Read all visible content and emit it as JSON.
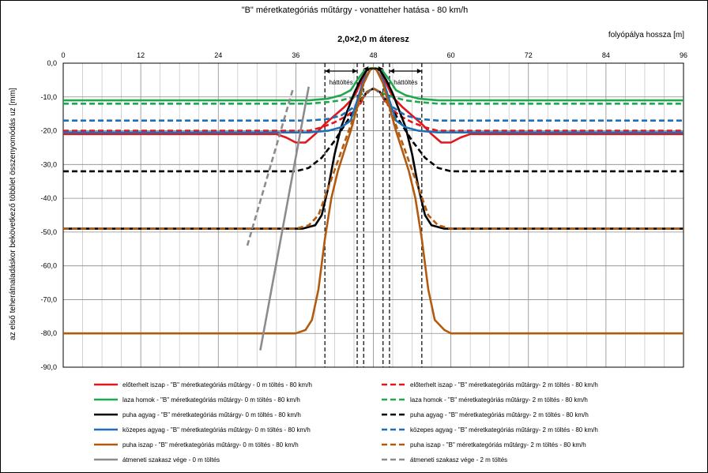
{
  "chart_data": {
    "type": "line",
    "title": "\"B\" méretkategóriás műtárgy - vonatteher hatása - 80 km/h",
    "xlabel": "folyópálya hossza   [m]",
    "ylabel": "az első teherátnaladáskor bekövetkező többlet összenyomódás  uz   [mm]",
    "xlim": [
      0,
      96
    ],
    "ylim": [
      -90,
      0
    ],
    "x_ticks": [
      "0",
      "12",
      "24",
      "36",
      "48",
      "60",
      "72",
      "84",
      "96"
    ],
    "y_ticks": [
      "0,0",
      "-10,0",
      "-20,0",
      "-30,0",
      "-40,0",
      "-50,0",
      "-60,0",
      "-70,0",
      "-80,0",
      "-90,0"
    ],
    "grid": true,
    "annotations": {
      "culvert": "2,0×2,0 m áteresz",
      "backfill_left": "háttöltés",
      "backfill_right": "háttöltés"
    },
    "vlines": [
      40.5,
      45.5,
      46.5,
      49.5,
      50.5,
      55.5
    ],
    "legend_position": "bottom",
    "series": [
      {
        "name": "előterhelt iszap - \"B\" méretkategóriás műtárgy - 0 m töltés - 80 km/h",
        "color": "#e3161d",
        "dash": false,
        "x": [
          0,
          33,
          34.5,
          36,
          37.5,
          39,
          40.5,
          42,
          43.5,
          45,
          46,
          47,
          48,
          49,
          50,
          51,
          52.5,
          54,
          55.5,
          57,
          58.5,
          60,
          61.5,
          63,
          96
        ],
        "y": [
          -21,
          -21,
          -22,
          -23.5,
          -23.5,
          -21,
          -18,
          -15.5,
          -13,
          -10,
          -6,
          -2,
          -1.5,
          -2,
          -6,
          -10,
          -13,
          -15.5,
          -18,
          -21,
          -23.5,
          -23.5,
          -22,
          -21,
          -21
        ]
      },
      {
        "name": "előterhelt iszap - \"B\" méretkategóriás műtárgy- 2 m töltés - 80 km/h",
        "color": "#e3161d",
        "dash": true,
        "x": [
          0,
          38,
          40,
          42,
          44,
          46,
          47,
          48,
          49,
          50,
          52,
          54,
          56,
          58,
          96
        ],
        "y": [
          -20,
          -20,
          -19,
          -17.5,
          -15.5,
          -12,
          -8.5,
          -7.5,
          -8.5,
          -12,
          -15.5,
          -17.5,
          -19,
          -20,
          -20
        ]
      },
      {
        "name": "laza homok - \"B\" méretkategóriás műtárgy- 0 m töltés - 80 km/h",
        "color": "#1fa84f",
        "dash": false,
        "x": [
          0,
          38,
          41,
          43,
          44.5,
          45.5,
          46.5,
          47.5,
          48,
          48.5,
          49.5,
          50.5,
          51.5,
          53,
          55,
          58,
          96
        ],
        "y": [
          -11,
          -11,
          -10.5,
          -9.5,
          -8,
          -5,
          -2.5,
          -1.5,
          -1.5,
          -1.5,
          -2.5,
          -5,
          -8,
          -9.5,
          -10.5,
          -11,
          -11
        ]
      },
      {
        "name": "laza homok - \"B\" méretkategóriás műtárgy- 2 m töltés - 80 km/h",
        "color": "#1fa84f",
        "dash": true,
        "x": [
          0,
          38,
          41,
          43,
          45,
          46.5,
          47.5,
          48,
          48.5,
          49.5,
          51,
          53,
          55,
          58,
          96
        ],
        "y": [
          -12,
          -12,
          -11.5,
          -11,
          -10,
          -9,
          -8,
          -7.5,
          -8,
          -9,
          -10,
          -11,
          -11.5,
          -12,
          -12
        ]
      },
      {
        "name": "puha agyag - \"B\" méretkategóriás műtárgy- 0 m töltés - 80 km/h",
        "color": "#000000",
        "dash": false,
        "x": [
          0,
          37,
          39,
          40,
          41,
          42,
          43,
          44,
          45,
          46,
          47,
          48,
          49,
          50,
          51,
          52,
          53,
          54,
          55,
          56,
          57,
          59,
          96
        ],
        "y": [
          -49,
          -49,
          -48,
          -45,
          -37,
          -27,
          -19,
          -14,
          -9,
          -5,
          -2,
          -1.5,
          -2,
          -5,
          -9,
          -14,
          -19,
          -27,
          -37,
          -45,
          -48,
          -49,
          -49
        ]
      },
      {
        "name": "puha agyag - \"B\" méretkategóriás műtárgy- 2 m töltés - 80 km/h",
        "color": "#000000",
        "dash": true,
        "x": [
          0,
          33,
          36,
          38,
          40,
          42,
          44,
          46,
          47,
          48,
          49,
          50,
          52,
          54,
          56,
          58,
          60,
          63,
          96
        ],
        "y": [
          -32,
          -32,
          -32,
          -31,
          -28,
          -23,
          -17,
          -11,
          -8.5,
          -7.5,
          -8.5,
          -11,
          -17,
          -23,
          -28,
          -31,
          -32,
          -32,
          -32
        ]
      },
      {
        "name": "közepes agyag - \"B\" méretkategóriás műtárgy- 0 m töltés - 80 km/h",
        "color": "#1f6fb8",
        "dash": false,
        "x": [
          0,
          38,
          41,
          43,
          44.5,
          45.5,
          46.5,
          47.5,
          48,
          48.5,
          49.5,
          50.5,
          51.5,
          53,
          55,
          58,
          96
        ],
        "y": [
          -20.5,
          -20.5,
          -20,
          -19,
          -17,
          -11,
          -5,
          -2,
          -1.5,
          -2,
          -5,
          -11,
          -17,
          -19,
          -20,
          -20.5,
          -20.5
        ]
      },
      {
        "name": "közepes agyag - \"B\" méretkategóriás műtárgy- 2 m töltés - 80 km/h",
        "color": "#1f6fb8",
        "dash": true,
        "x": [
          0,
          38,
          41,
          43,
          45,
          46.5,
          47.5,
          48,
          48.5,
          49.5,
          51,
          53,
          55,
          58,
          96
        ],
        "y": [
          -17,
          -17,
          -16.5,
          -15.5,
          -13,
          -10,
          -8,
          -7.5,
          -8,
          -10,
          -13,
          -15.5,
          -16.5,
          -17,
          -17
        ]
      },
      {
        "name": "puha iszap - \"B\" méretkategóriás műtárgy- 0 m töltés - 80 km/h",
        "color": "#b25b10",
        "dash": false,
        "x": [
          0,
          36,
          37.5,
          38.5,
          39.5,
          40.5,
          41.5,
          42.5,
          43.5,
          44.5,
          45.5,
          46.5,
          47.5,
          48,
          48.5,
          49.5,
          50.5,
          51.5,
          52.5,
          53.5,
          54.5,
          55.5,
          56.5,
          57.5,
          59,
          60,
          96
        ],
        "y": [
          -80,
          -80,
          -79,
          -76,
          -67,
          -52,
          -40,
          -32,
          -26,
          -20,
          -13,
          -6,
          -2,
          -1.5,
          -2,
          -6,
          -13,
          -20,
          -26,
          -32,
          -40,
          -52,
          -67,
          -76,
          -79,
          -80,
          -80
        ]
      },
      {
        "name": "puha iszap - \"B\" méretkategóriás műtárgy- 2 m töltés - 80 km/h",
        "color": "#b25b10",
        "dash": true,
        "x": [
          0,
          36,
          38,
          39.5,
          41,
          42.5,
          44,
          45.5,
          47,
          48,
          49,
          50.5,
          52,
          53.5,
          55,
          56.5,
          58,
          60,
          96
        ],
        "y": [
          -49,
          -49,
          -48,
          -45,
          -37,
          -29,
          -21,
          -13,
          -8.5,
          -7.5,
          -8.5,
          -13,
          -21,
          -29,
          -37,
          -45,
          -48,
          -49,
          -49
        ]
      },
      {
        "name": "átmeneti szakasz vége - 0 m töltés",
        "color": "#8c8c8c",
        "dash": false,
        "x": [
          30.5,
          38
        ],
        "y": [
          -85,
          -7
        ]
      },
      {
        "name": "átmeneti szakasz vége - 2 m töltés",
        "color": "#8c8c8c",
        "dash": true,
        "x": [
          28.5,
          35.5
        ],
        "y": [
          -54,
          -8
        ]
      }
    ]
  }
}
